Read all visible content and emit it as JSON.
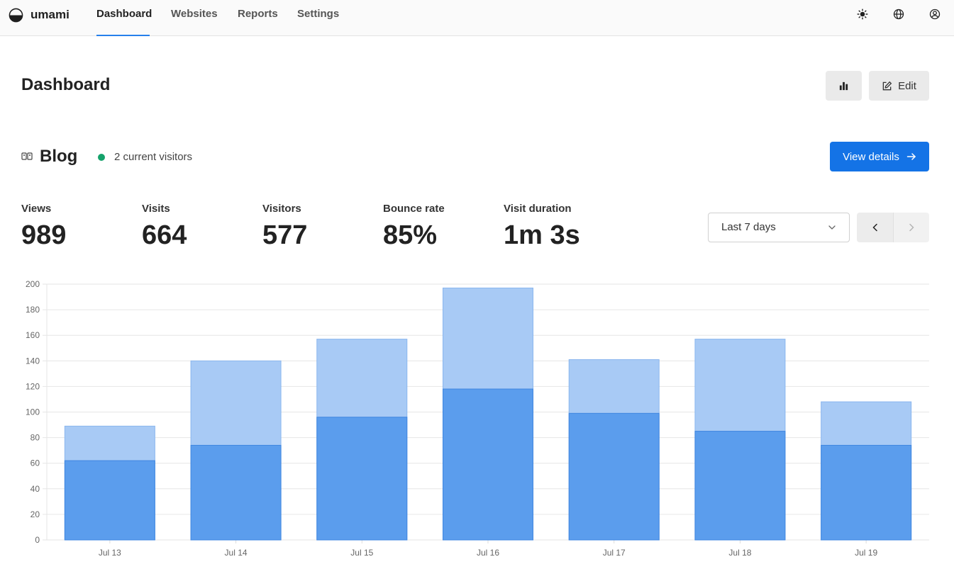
{
  "app": {
    "name": "umami"
  },
  "nav": {
    "links": [
      {
        "label": "Dashboard",
        "active": true
      },
      {
        "label": "Websites"
      },
      {
        "label": "Reports"
      },
      {
        "label": "Settings"
      }
    ],
    "icons": [
      "sun-icon",
      "globe-icon",
      "user-circle-icon"
    ]
  },
  "page": {
    "title": "Dashboard",
    "actions": [
      {
        "icon": "bar-chart-icon",
        "label": ""
      },
      {
        "icon": "edit-icon",
        "label": "Edit"
      }
    ]
  },
  "website": {
    "icon": "favicon-icon",
    "name": "Blog",
    "current_visitors": "2 current visitors",
    "view_details": "View details",
    "live_color": "#15a26b",
    "accent": "#1473e6"
  },
  "metrics": [
    {
      "label": "Views",
      "value": "989"
    },
    {
      "label": "Visits",
      "value": "664"
    },
    {
      "label": "Visitors",
      "value": "577"
    },
    {
      "label": "Bounce rate",
      "value": "85%"
    },
    {
      "label": "Visit duration",
      "value": "1m 3s"
    }
  ],
  "filters": {
    "date_range": "Last 7 days",
    "prev_icon": "chevron-left-icon",
    "next_icon": "chevron-right-icon"
  },
  "chart_data": {
    "type": "bar",
    "stacked": "overlay",
    "categories": [
      "Jul 13",
      "Jul 14",
      "Jul 15",
      "Jul 16",
      "Jul 17",
      "Jul 18",
      "Jul 19"
    ],
    "series": [
      {
        "values": [
          89,
          140,
          157,
          197,
          141,
          157,
          108
        ],
        "color": "#a8caf5"
      },
      {
        "values": [
          62,
          74,
          96,
          118,
          99,
          85,
          74
        ],
        "color": "#5b9ded"
      }
    ],
    "yticks": [
      0,
      20,
      40,
      60,
      80,
      100,
      120,
      140,
      160,
      180,
      200
    ],
    "ylim": [
      0,
      200
    ],
    "grid": true
  }
}
